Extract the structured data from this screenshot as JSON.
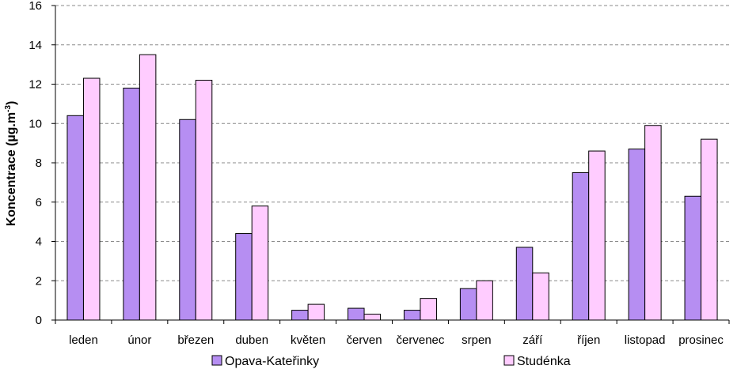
{
  "chart_data": {
    "type": "bar",
    "title": "",
    "xlabel": "",
    "ylabel": "Koncentrace (µg.m",
    "ylabel_sup": "-3",
    "ylabel_close": ")",
    "ylim": [
      0,
      16
    ],
    "yticks": [
      "0",
      "2",
      "4",
      "6",
      "8",
      "10",
      "12",
      "14",
      "16"
    ],
    "grid": "horizontal dashed",
    "legend_position": "bottom",
    "categories": [
      "leden",
      "únor",
      "březen",
      "duben",
      "květen",
      "červen",
      "červenec",
      "srpen",
      "září",
      "říjen",
      "listopad",
      "prosinec"
    ],
    "series": [
      {
        "name": "Opava-Kateřinky",
        "color": "#b68ef2",
        "values": [
          10.4,
          11.8,
          10.2,
          4.4,
          0.5,
          0.6,
          0.5,
          1.6,
          3.7,
          7.5,
          8.7,
          6.3
        ]
      },
      {
        "name": "Studénka",
        "color": "#ffccff",
        "values": [
          12.3,
          13.5,
          12.2,
          5.8,
          0.8,
          0.3,
          1.1,
          2.0,
          2.4,
          8.6,
          9.9,
          9.2
        ]
      }
    ]
  }
}
